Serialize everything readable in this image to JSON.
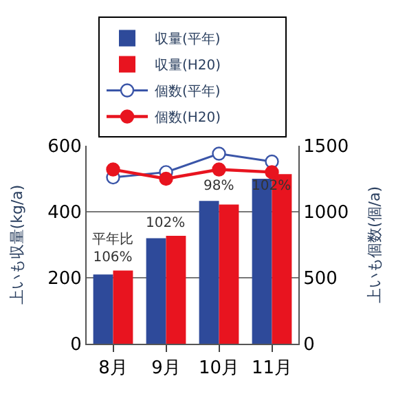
{
  "chart_data": {
    "type": "bar",
    "categories": [
      "8月",
      "9月",
      "10月",
      "11月"
    ],
    "series": [
      {
        "name": "収量(平年)",
        "color": "#2e4a9a",
        "values": [
          210,
          320,
          433,
          500
        ]
      },
      {
        "name": "収量(H20)",
        "color": "#e8141f",
        "values": [
          222,
          327,
          422,
          514
        ]
      },
      {
        "name": "個数(平年)",
        "type": "line",
        "axis": "y2",
        "marker": "circle",
        "color": "#3a55a8",
        "values": [
          1260,
          1300,
          1440,
          1380
        ]
      },
      {
        "name": "個数(H20)",
        "type": "line",
        "axis": "y2",
        "marker": "circle",
        "color": "#e8141f",
        "values": [
          1320,
          1250,
          1320,
          1300
        ]
      }
    ],
    "ylabel": "上いも収量(kg/a)",
    "y2label": "上いも個数(個/a)",
    "ylim": [
      0,
      600
    ],
    "yticks": [
      0,
      200,
      400,
      600
    ],
    "y2lim": [
      0,
      1500
    ],
    "y2ticks": [
      0,
      500,
      1000,
      1500
    ],
    "annotations": [
      {
        "text": "平年比\n106%",
        "x": "8月",
        "y": 232
      },
      {
        "text": "102%",
        "x": "9月",
        "y": 336
      },
      {
        "text": "98%",
        "x": "10月",
        "y": 448
      },
      {
        "text": "102%",
        "x": "11月",
        "y": 448
      }
    ],
    "grid": "y",
    "legend": "top"
  }
}
